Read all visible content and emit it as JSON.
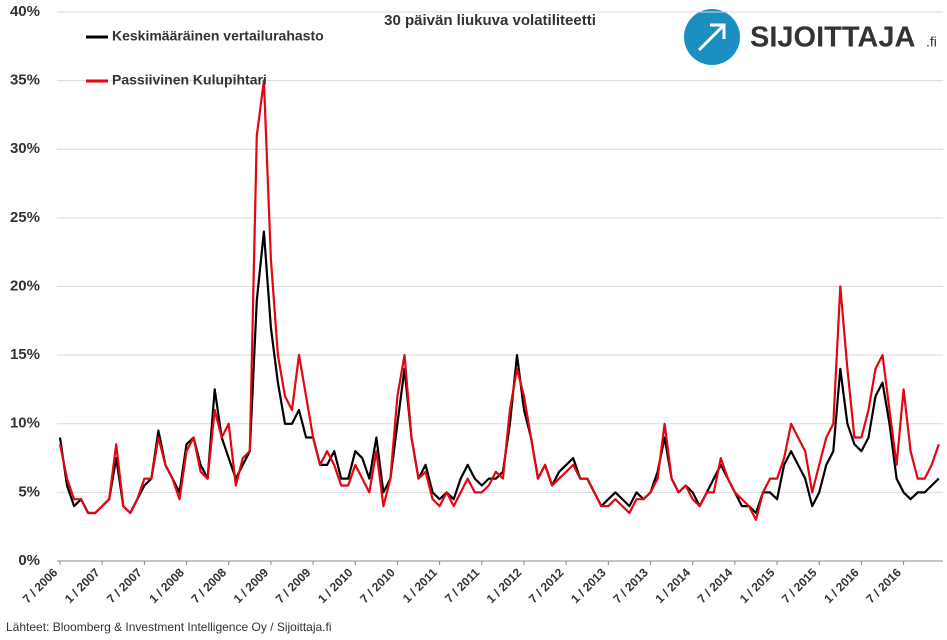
{
  "chart_data": {
    "type": "line",
    "title": "30 päivän liukuva volatiliteetti",
    "logo": {
      "text": "SIJOITTAJA",
      "suffix": ".fi"
    },
    "source": "Lähteet: Bloomberg & Investment Intelligence Oy / Sijoittaja.fi",
    "x": [
      "2006-07",
      "2006-08",
      "2006-09",
      "2006-10",
      "2006-11",
      "2006-12",
      "2007-01",
      "2007-02",
      "2007-03",
      "2007-04",
      "2007-05",
      "2007-06",
      "2007-07",
      "2007-08",
      "2007-09",
      "2007-10",
      "2007-11",
      "2007-12",
      "2008-01",
      "2008-02",
      "2008-03",
      "2008-04",
      "2008-05",
      "2008-06",
      "2008-07",
      "2008-08",
      "2008-09",
      "2008-10",
      "2008-11",
      "2008-12",
      "2009-01",
      "2009-02",
      "2009-03",
      "2009-04",
      "2009-05",
      "2009-06",
      "2009-07",
      "2009-08",
      "2009-09",
      "2009-10",
      "2009-11",
      "2009-12",
      "2010-01",
      "2010-02",
      "2010-03",
      "2010-04",
      "2010-05",
      "2010-06",
      "2010-07",
      "2010-08",
      "2010-09",
      "2010-10",
      "2010-11",
      "2010-12",
      "2011-01",
      "2011-02",
      "2011-03",
      "2011-04",
      "2011-05",
      "2011-06",
      "2011-07",
      "2011-08",
      "2011-09",
      "2011-10",
      "2011-11",
      "2011-12",
      "2012-01",
      "2012-02",
      "2012-03",
      "2012-04",
      "2012-05",
      "2012-06",
      "2012-07",
      "2012-08",
      "2012-09",
      "2012-10",
      "2012-11",
      "2012-12",
      "2013-01",
      "2013-02",
      "2013-03",
      "2013-04",
      "2013-05",
      "2013-06",
      "2013-07",
      "2013-08",
      "2013-09",
      "2013-10",
      "2013-11",
      "2013-12",
      "2014-01",
      "2014-02",
      "2014-03",
      "2014-04",
      "2014-05",
      "2014-06",
      "2014-07",
      "2014-08",
      "2014-09",
      "2014-10",
      "2014-11",
      "2014-12",
      "2015-01",
      "2015-02",
      "2015-03",
      "2015-04",
      "2015-05",
      "2015-06",
      "2015-07",
      "2015-08",
      "2015-09",
      "2015-10",
      "2015-11",
      "2015-12",
      "2016-01",
      "2016-02",
      "2016-03",
      "2016-04",
      "2016-05",
      "2016-06",
      "2016-07",
      "2016-08",
      "2016-09",
      "2016-10",
      "2016-11",
      "2016-12"
    ],
    "series": [
      {
        "name": "Keskimääräinen vertailurahasto",
        "color": "#000000",
        "values": [
          9,
          5.5,
          4,
          4.5,
          3.5,
          3.5,
          4,
          4.5,
          7.5,
          4,
          3.5,
          4.5,
          5.5,
          6,
          9.5,
          7,
          6,
          5,
          8.5,
          9,
          7,
          6,
          12.5,
          9,
          7.5,
          6,
          7,
          8,
          19,
          24,
          17,
          13,
          10,
          10,
          11,
          9,
          9,
          7,
          7,
          8,
          6,
          6,
          8,
          7.5,
          6,
          9,
          5,
          6,
          10,
          14,
          9,
          6,
          7,
          5,
          4.5,
          5,
          4.5,
          6,
          7,
          6,
          5.5,
          6,
          6,
          6.5,
          10,
          15,
          11,
          9,
          6,
          7,
          5.5,
          6.5,
          7,
          7.5,
          6,
          6,
          5,
          4,
          4.5,
          5,
          4.5,
          4,
          5,
          4.5,
          5,
          6.5,
          9,
          6,
          5,
          5.5,
          5,
          4,
          5,
          6,
          7,
          6,
          5,
          4,
          4,
          3.5,
          5,
          5,
          4.5,
          7,
          8,
          7,
          6,
          4,
          5,
          7,
          8,
          14,
          10,
          8.5,
          8,
          9,
          12,
          13,
          10,
          6,
          5,
          4.5,
          5,
          5,
          5.5,
          6
        ]
      },
      {
        "name": "Passiivinen Kulupihtari",
        "color": "#e30613",
        "values": [
          8.5,
          6,
          4.5,
          4.5,
          3.5,
          3.5,
          4,
          4.5,
          8.5,
          4,
          3.5,
          4.5,
          6,
          6,
          9,
          7,
          6,
          4.5,
          8,
          9,
          6.5,
          6,
          11,
          9,
          10,
          5.5,
          7.5,
          8,
          31,
          35,
          22,
          15,
          12,
          11,
          15,
          12,
          9,
          7,
          8,
          7,
          5.5,
          5.5,
          7,
          6,
          5,
          8,
          4,
          6,
          12,
          15,
          9,
          6,
          6.5,
          4.5,
          4,
          5,
          4,
          5,
          6,
          5,
          5,
          5.5,
          6.5,
          6,
          11,
          14,
          12,
          9,
          6,
          7,
          5.5,
          6,
          6.5,
          7,
          6,
          6,
          5,
          4,
          4,
          4.5,
          4,
          3.5,
          4.5,
          4.5,
          5,
          6,
          10,
          6,
          5,
          5.5,
          4.5,
          4,
          5,
          5,
          7.5,
          6,
          5,
          4.5,
          4,
          3,
          5,
          6,
          6,
          7.5,
          10,
          9,
          8,
          5,
          7,
          9,
          10,
          20,
          14,
          9,
          9,
          11,
          14,
          15,
          11,
          7,
          12.5,
          8,
          6,
          6,
          7,
          8.5
        ]
      }
    ],
    "ylim": [
      0,
      40
    ],
    "yticks": [
      {
        "value": 0,
        "label": "0%"
      },
      {
        "value": 5,
        "label": "5%"
      },
      {
        "value": 10,
        "label": "10%"
      },
      {
        "value": 15,
        "label": "15%"
      },
      {
        "value": 20,
        "label": "20%"
      },
      {
        "value": 25,
        "label": "25%"
      },
      {
        "value": 30,
        "label": "30%"
      },
      {
        "value": 35,
        "label": "35%"
      },
      {
        "value": 40,
        "label": "40%"
      }
    ],
    "xticks": [
      {
        "value": "2006-07",
        "label": "7 / 2006"
      },
      {
        "value": "2007-01",
        "label": "1 / 2007"
      },
      {
        "value": "2007-07",
        "label": "7 / 2007"
      },
      {
        "value": "2008-01",
        "label": "1 / 2008"
      },
      {
        "value": "2008-07",
        "label": "7 / 2008"
      },
      {
        "value": "2009-01",
        "label": "1 / 2009"
      },
      {
        "value": "2009-07",
        "label": "7 / 2009"
      },
      {
        "value": "2010-01",
        "label": "1 / 2010"
      },
      {
        "value": "2010-07",
        "label": "7 / 2010"
      },
      {
        "value": "2011-01",
        "label": "1 / 2011"
      },
      {
        "value": "2011-07",
        "label": "7 / 2011"
      },
      {
        "value": "2012-01",
        "label": "1 / 2012"
      },
      {
        "value": "2012-07",
        "label": "7 / 2012"
      },
      {
        "value": "2013-01",
        "label": "1 / 2013"
      },
      {
        "value": "2013-07",
        "label": "7 / 2013"
      },
      {
        "value": "2014-01",
        "label": "1 / 2014"
      },
      {
        "value": "2014-07",
        "label": "7 / 2014"
      },
      {
        "value": "2015-01",
        "label": "1 / 2015"
      },
      {
        "value": "2015-07",
        "label": "7 / 2015"
      },
      {
        "value": "2016-01",
        "label": "1 / 2016"
      },
      {
        "value": "2016-07",
        "label": "7 / 2016"
      }
    ],
    "grid": true
  }
}
